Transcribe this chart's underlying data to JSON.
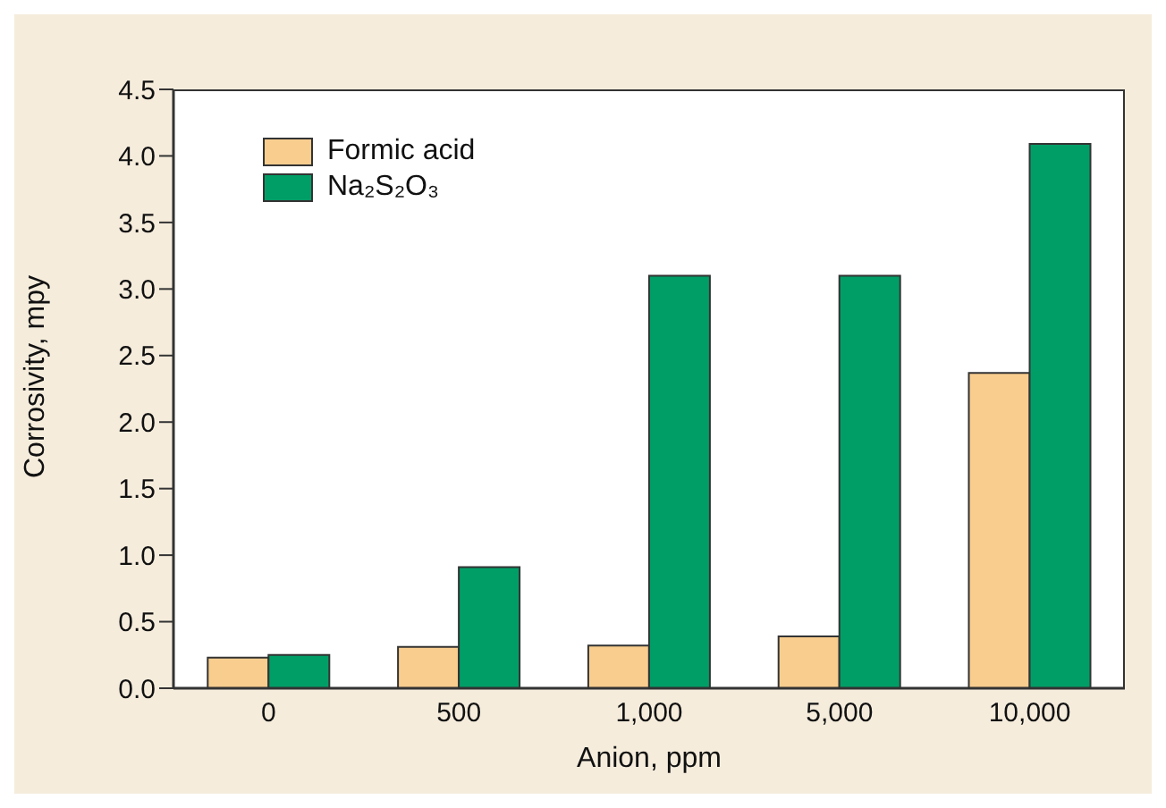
{
  "chart_data": {
    "type": "bar",
    "xlabel": "Anion, ppm",
    "ylabel": "Corrosivity, mpy",
    "categories": [
      "0",
      "500",
      "1,000",
      "5,000",
      "10,000"
    ],
    "series": [
      {
        "name": "Formic acid",
        "color": "#f8cd8e",
        "values": [
          0.23,
          0.31,
          0.32,
          0.39,
          2.37
        ]
      },
      {
        "name": "Na₂S₂O₃",
        "color": "#009e67",
        "values": [
          0.25,
          0.91,
          3.1,
          3.1,
          4.09
        ]
      }
    ],
    "ylim": [
      0,
      4.5
    ],
    "yticks": [
      {
        "value": 0,
        "label": "0.0"
      },
      {
        "value": 0.5,
        "label": "0.5"
      },
      {
        "value": 1,
        "label": "1.0"
      },
      {
        "value": 1.5,
        "label": "1.5"
      },
      {
        "value": 2,
        "label": "2.0"
      },
      {
        "value": 2.5,
        "label": "2.5"
      },
      {
        "value": 3,
        "label": "3.0"
      },
      {
        "value": 3.5,
        "label": "3.5"
      },
      {
        "value": 4,
        "label": "4.0"
      },
      {
        "value": 4.5,
        "label": "4.5"
      }
    ],
    "legend": "top left"
  }
}
